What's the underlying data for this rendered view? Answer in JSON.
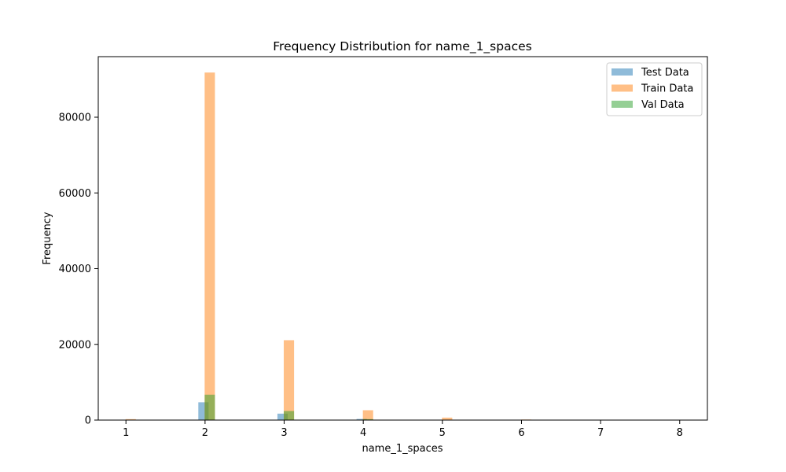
{
  "chart_data": {
    "type": "bar",
    "title": "Frequency Distribution for name_1_spaces",
    "xlabel": "name_1_spaces",
    "ylabel": "Frequency",
    "xlim": [
      0.65,
      8.35
    ],
    "ylim": [
      0,
      96000
    ],
    "xticks": [
      1,
      2,
      3,
      4,
      5,
      6,
      7,
      8
    ],
    "yticks": [
      0,
      20000,
      40000,
      60000,
      80000
    ],
    "grid": false,
    "legend_position": "top-right",
    "series": [
      {
        "name": "Test Data",
        "color": "#1f77b4",
        "points": [
          {
            "x": 1,
            "y": 30
          },
          {
            "x": 2,
            "y": 4700
          },
          {
            "x": 3,
            "y": 1700
          },
          {
            "x": 4,
            "y": 300
          },
          {
            "x": 5,
            "y": 60
          },
          {
            "x": 6,
            "y": 10
          },
          {
            "x": 7,
            "y": 2
          },
          {
            "x": 8,
            "y": 1
          }
        ]
      },
      {
        "name": "Train Data",
        "color": "#ff7f0e",
        "points": [
          {
            "x": 1,
            "y": 250
          },
          {
            "x": 2,
            "y": 91800
          },
          {
            "x": 3,
            "y": 21100
          },
          {
            "x": 4,
            "y": 2600
          },
          {
            "x": 5,
            "y": 650
          },
          {
            "x": 6,
            "y": 150
          },
          {
            "x": 7,
            "y": 30
          },
          {
            "x": 8,
            "y": 10
          }
        ]
      },
      {
        "name": "Val Data",
        "color": "#2ca02c",
        "points": [
          {
            "x": 1,
            "y": 20
          },
          {
            "x": 2,
            "y": 6700
          },
          {
            "x": 3,
            "y": 2400
          },
          {
            "x": 4,
            "y": 250
          },
          {
            "x": 5,
            "y": 50
          },
          {
            "x": 6,
            "y": 8
          },
          {
            "x": 7,
            "y": 2
          },
          {
            "x": 8,
            "y": 1
          }
        ]
      }
    ]
  }
}
